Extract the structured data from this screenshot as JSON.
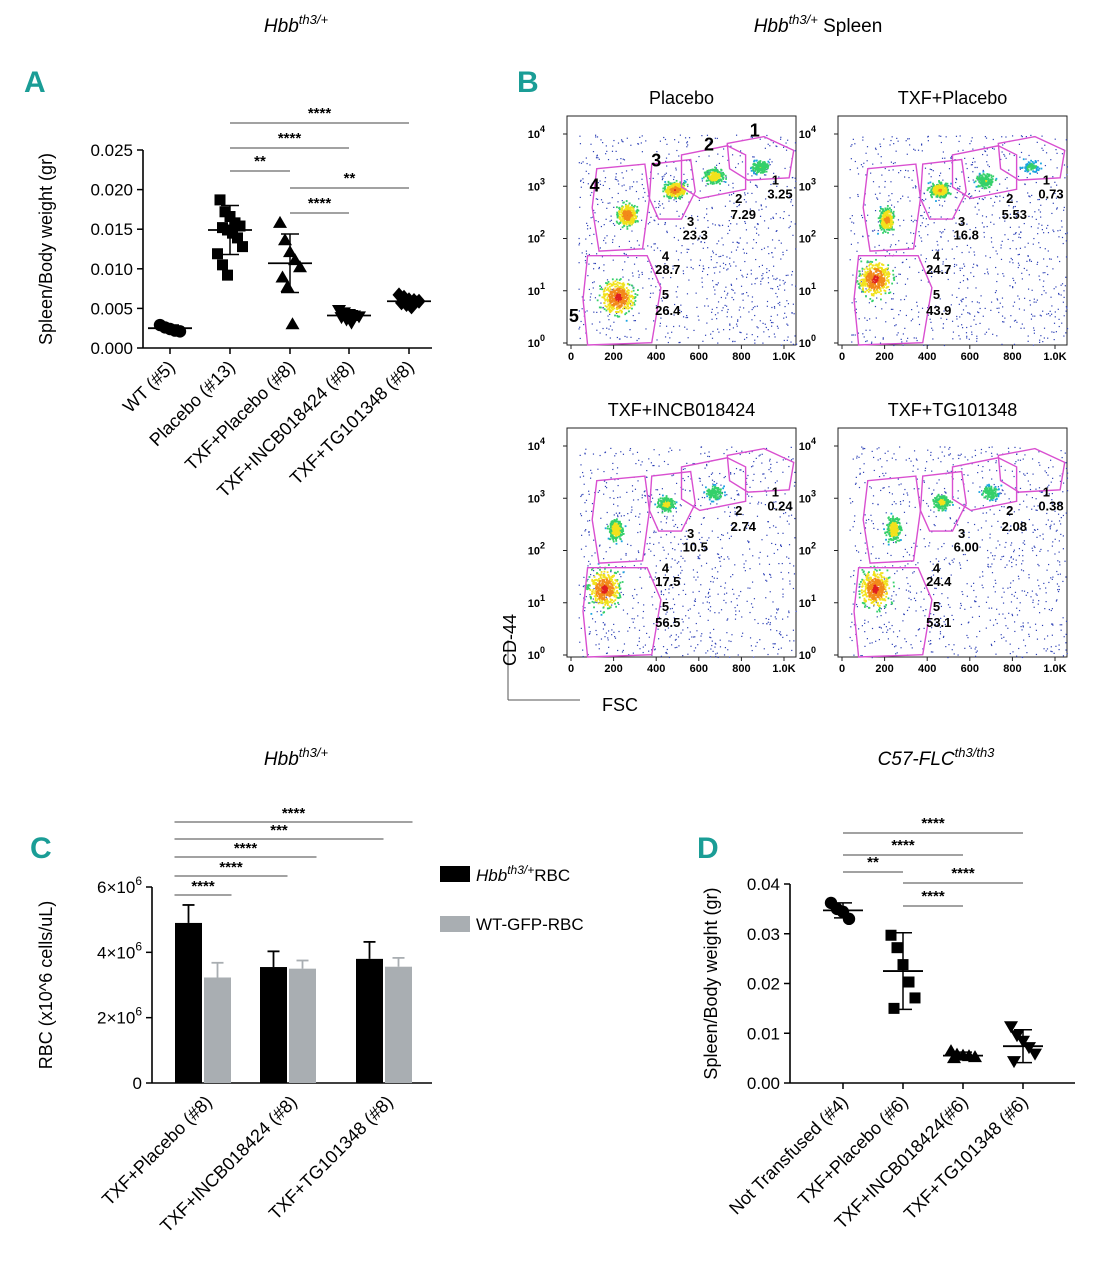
{
  "titles": {
    "a_base": "Hbb",
    "a_sup": "th3/+",
    "b_base": "Hbb",
    "b_sup": "th3/+",
    "b_suffix": " Spleen",
    "c_base": "Hbb",
    "c_sup": "th3/+",
    "d_base": "C57-FLC",
    "d_sup": "th3/th3"
  },
  "panel_letters": {
    "a": "A",
    "b": "B",
    "c": "C",
    "d": "D"
  },
  "chart_data": [
    {
      "id": "A",
      "type": "scatter",
      "title": "Hbbth3/+",
      "ylabel": "Spleen/Body weight (gr)",
      "ylim": [
        0,
        0.025
      ],
      "yticks": [
        "0.000",
        "0.005",
        "0.010",
        "0.015",
        "0.020",
        "0.025"
      ],
      "categories": [
        "WT (#5)",
        "Placebo (#13)",
        "TXF+Placebo (#8)",
        "TXF+INCB018424 (#8)",
        "TXF+TG101348 (#8)"
      ],
      "markers": [
        "circle",
        "square",
        "triangle",
        "triangle-down",
        "diamond"
      ],
      "means": [
        0.0025,
        0.0149,
        0.0107,
        0.0041,
        0.0059
      ],
      "sd": [
        0.0004,
        0.0031,
        0.0037,
        0.0006,
        0.0006
      ],
      "points": [
        [
          0.0029,
          0.0026,
          0.0024,
          0.0022,
          0.0021
        ],
        [
          0.0187,
          0.0172,
          0.0166,
          0.0158,
          0.0154,
          0.0152,
          0.0149,
          0.0145,
          0.0139,
          0.0128,
          0.0119,
          0.0105,
          0.0092
        ],
        [
          0.0158,
          0.0136,
          0.0121,
          0.0111,
          0.0102,
          0.0089,
          0.0077,
          0.003
        ],
        [
          0.0048,
          0.0045,
          0.0043,
          0.0041,
          0.004,
          0.0039,
          0.0036,
          0.0032
        ],
        [
          0.0067,
          0.0064,
          0.0061,
          0.006,
          0.0059,
          0.0057,
          0.0055,
          0.0052
        ]
      ],
      "significance": [
        {
          "from": 1,
          "to": 4,
          "label": "****"
        },
        {
          "from": 1,
          "to": 3,
          "label": "****"
        },
        {
          "from": 1,
          "to": 2,
          "label": "**"
        },
        {
          "from": 2,
          "to": 4,
          "label": "**"
        },
        {
          "from": 2,
          "to": 3,
          "label": "****"
        }
      ]
    },
    {
      "id": "B",
      "type": "flow-cytometry",
      "xlabel": "FSC",
      "ylabel": "CD-44",
      "xticks": [
        "0",
        "200",
        "400",
        "600",
        "800",
        "1.0K"
      ],
      "yticks": [
        "10",
        "10",
        "10",
        "10",
        "10"
      ],
      "ytick_exponents": [
        "0",
        "1",
        "2",
        "3",
        "4"
      ],
      "panels": [
        {
          "title": "Placebo",
          "gate_values": [
            "3.25",
            "7.29",
            "23.3",
            "28.7",
            "26.4"
          ],
          "gate_labels": [
            "1",
            "2",
            "3",
            "4",
            "5"
          ]
        },
        {
          "title": "TXF+Placebo",
          "gate_values": [
            "0.73",
            "5.53",
            "16.8",
            "24.7",
            "43.9"
          ],
          "gate_labels": [
            "1",
            "2",
            "3",
            "4",
            "5"
          ]
        },
        {
          "title": "TXF+INCB018424",
          "gate_values": [
            "0.24",
            "2.74",
            "10.5",
            "17.5",
            "56.5"
          ],
          "gate_labels": [
            "1",
            "2",
            "3",
            "4",
            "5"
          ]
        },
        {
          "title": "TXF+TG101348",
          "gate_values": [
            "0.38",
            "2.08",
            "6.00",
            "24.4",
            "53.1"
          ],
          "gate_labels": [
            "1",
            "2",
            "3",
            "4",
            "5"
          ]
        }
      ],
      "large_gate_labels": [
        "1",
        "2",
        "3",
        "4",
        "5"
      ]
    },
    {
      "id": "C",
      "type": "bar",
      "title": "Hbbth3/+",
      "ylabel": "RBC (x10^6 cells/uL)",
      "ylim": [
        0,
        6000000
      ],
      "ytick_mantissas": [
        "0",
        "2×10",
        "4×10",
        "6×10"
      ],
      "ytick_exp": "6",
      "categories": [
        "TXF+Placebo (#8)",
        "TXF+INCB018424 (#8)",
        "TXF+TG101348 (#8)"
      ],
      "series": [
        {
          "name_base": "Hbb",
          "name_sup": "th3/+",
          "name_suffix": "RBC",
          "color": "#000000",
          "values": [
            4900000,
            3550000,
            3800000
          ],
          "err": [
            550000,
            480000,
            520000
          ]
        },
        {
          "name": "WT-GFP-RBC",
          "color": "#a9aeb2",
          "values": [
            3230000,
            3500000,
            3560000
          ],
          "err": [
            450000,
            250000,
            270000
          ]
        }
      ],
      "significance": [
        {
          "from": [
            0,
            0
          ],
          "to": [
            2,
            1
          ],
          "label": "****"
        },
        {
          "from": [
            0,
            0
          ],
          "to": [
            2,
            0
          ],
          "label": "***"
        },
        {
          "from": [
            0,
            0
          ],
          "to": [
            1,
            1
          ],
          "label": "****"
        },
        {
          "from": [
            0,
            0
          ],
          "to": [
            1,
            0
          ],
          "label": "****"
        },
        {
          "from": [
            0,
            0
          ],
          "to": [
            0,
            1
          ],
          "label": "****"
        }
      ]
    },
    {
      "id": "D",
      "type": "scatter",
      "title": "C57-FLCth3/th3",
      "ylabel": "Spleen/Body weight (gr)",
      "ylim": [
        0,
        0.04
      ],
      "yticks": [
        "0.00",
        "0.01",
        "0.02",
        "0.03",
        "0.04"
      ],
      "categories": [
        "Not Transfused (#4)",
        "TXF+Placebo (#6)",
        "TXF+INCB018424(#6)",
        "TXF+TG101348 (#6)"
      ],
      "markers": [
        "circle",
        "square",
        "triangle",
        "triangle-down"
      ],
      "means": [
        0.0347,
        0.0225,
        0.0055,
        0.0074
      ],
      "sd": [
        0.0015,
        0.0077,
        0.0007,
        0.0033
      ],
      "points": [
        [
          0.0362,
          0.035,
          0.0344,
          0.033
        ],
        [
          0.0297,
          0.0272,
          0.0238,
          0.0203,
          0.0171,
          0.015
        ],
        [
          0.0064,
          0.0057,
          0.0055,
          0.0054,
          0.0052,
          0.005
        ],
        [
          0.0114,
          0.0096,
          0.0085,
          0.0072,
          0.0059,
          0.0044
        ]
      ],
      "significance": [
        {
          "from": 0,
          "to": 3,
          "label": "****"
        },
        {
          "from": 0,
          "to": 2,
          "label": "****"
        },
        {
          "from": 0,
          "to": 1,
          "label": "**"
        },
        {
          "from": 1,
          "to": 3,
          "label": "****"
        },
        {
          "from": 1,
          "to": 2,
          "label": "****"
        }
      ]
    }
  ]
}
